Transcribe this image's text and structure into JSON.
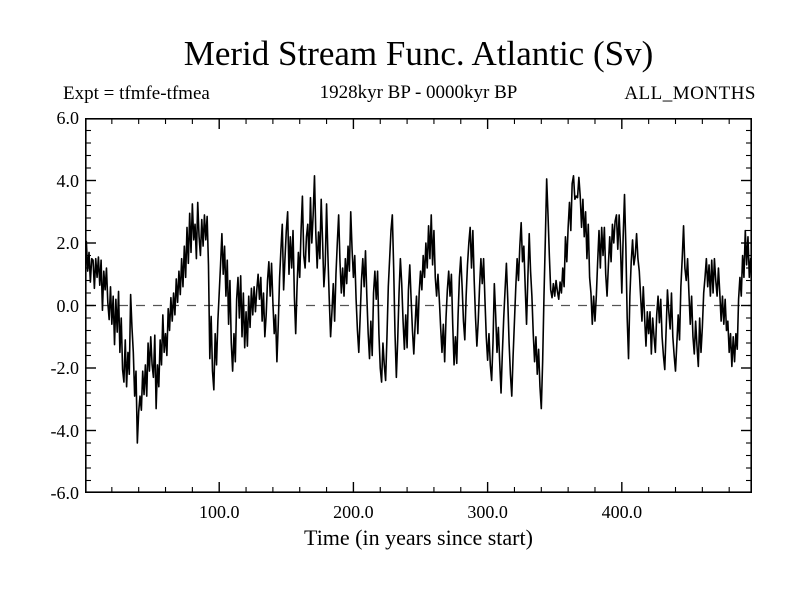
{
  "page": {
    "background": "#ffffff"
  },
  "header": {
    "title": "Merid Stream Func. Atlantic (Sv)",
    "expt_label": "Expt = tfmfe-tfmea",
    "range_label": "1928kyr BP - 0000kyr BP",
    "months_label": "ALL_MONTHS"
  },
  "chart_data": {
    "type": "line",
    "title": "Merid Stream Func. Atlantic (Sv)",
    "xlabel": "Time (in years since start)",
    "ylabel": "",
    "xlim": [
      0,
      497
    ],
    "ylim": [
      -6,
      6
    ],
    "grid": false,
    "legend": "none",
    "x_major_ticks": [
      100,
      200,
      300,
      400
    ],
    "x_tick_labels": [
      "100.0",
      "200.0",
      "300.0",
      "400.0"
    ],
    "x_minor_step": 20,
    "y_major_ticks": [
      6,
      4,
      2,
      0,
      -2,
      -4,
      -6
    ],
    "y_tick_labels": [
      "6.0",
      "4.0",
      "2.0",
      "0.0",
      "-2.0",
      "-4.0",
      "-6.0"
    ],
    "y_minor_step": 0.4,
    "zero_line": 0,
    "line_color": "#000000",
    "zero_line_color": "#555555",
    "frame_color": "#000000",
    "x_start": 0,
    "x_step": 1,
    "values": [
      1.3,
      2.05,
      1.1,
      1.7,
      0.75,
      1.5,
      1.45,
      0.55,
      1.5,
      0.9,
      1.55,
      0.65,
      1.45,
      -0.15,
      1.1,
      0.5,
      1.2,
      0.1,
      -0.45,
      0.6,
      -0.6,
      0.3,
      -1.25,
      0.2,
      -0.85,
      0.45,
      -1.5,
      -0.4,
      -2.05,
      -2.45,
      -1.1,
      -2.6,
      -1.5,
      -2.2,
      0.35,
      -0.7,
      -1.5,
      -2.9,
      -2.1,
      -4.4,
      -3.4,
      -2.9,
      -3.35,
      -2.1,
      -2.85,
      -1.9,
      -2.9,
      -1.2,
      -2.1,
      -1.0,
      -1.9,
      -2.3,
      -0.95,
      -3.3,
      -1.9,
      -2.6,
      -1.1,
      -1.9,
      -0.3,
      -1.5,
      -0.9,
      -1.6,
      -0.1,
      -0.8,
      0.25,
      -0.5,
      0.4,
      -0.3,
      0.85,
      0.1,
      1.1,
      0.35,
      1.5,
      0.6,
      1.9,
      0.9,
      2.5,
      1.35,
      2.95,
      1.7,
      3.25,
      2.1,
      2.6,
      1.5,
      3.3,
      2.2,
      1.6,
      2.75,
      1.9,
      2.9,
      2.1,
      2.85,
      1.3,
      -1.7,
      -0.35,
      -2.1,
      -2.7,
      -0.9,
      -1.9,
      -0.5,
      0.4,
      1.3,
      2.3,
      1.0,
      1.9,
      0.3,
      1.45,
      -0.6,
      0.8,
      -1.2,
      -2.1,
      -0.9,
      -1.8,
      0.2,
      0.9,
      -0.4,
      0.95,
      -1.0,
      0.4,
      -1.35,
      -0.2,
      -1.3,
      0.3,
      -0.7,
      0.55,
      -0.3,
      0.6,
      -0.2,
      0.5,
      1.0,
      0.2,
      0.9,
      -0.5,
      0.4,
      -1.0,
      -0.3,
      0.8,
      1.4,
      0.3,
      1.35,
      0.1,
      -0.9,
      -0.3,
      -1.8,
      -0.6,
      0.9,
      1.8,
      2.6,
      0.5,
      1.5,
      2.4,
      3.0,
      1.0,
      2.2,
      1.2,
      2.4,
      0.3,
      -0.9,
      0.6,
      1.7,
      0.9,
      2.4,
      3.5,
      1.6,
      1.2,
      2.2,
      2.6,
      1.4,
      3.45,
      2.0,
      2.9,
      4.15,
      2.3,
      1.2,
      2.35,
      1.5,
      3.4,
      2.1,
      0.6,
      1.3,
      3.25,
      1.6,
      0.2,
      -1.0,
      -0.2,
      0.7,
      -0.5,
      1.0,
      2.0,
      2.9,
      1.4,
      0.4,
      1.2,
      0.3,
      1.5,
      0.7,
      1.9,
      1.1,
      3.0,
      1.8,
      0.9,
      1.6,
      0.2,
      -0.8,
      -1.5,
      -0.4,
      0.8,
      1.5,
      0.6,
      1.75,
      0.3,
      -0.9,
      -1.7,
      -0.5,
      -1.6,
      0.4,
      1.1,
      0.2,
      1.1,
      -0.9,
      -2.0,
      -2.45,
      -1.2,
      -1.9,
      -2.4,
      -1.0,
      0.6,
      1.5,
      2.4,
      2.9,
      1.2,
      -0.9,
      -2.3,
      -1.1,
      0.4,
      1.5,
      0.7,
      -0.5,
      -1.4,
      -0.3,
      -1.35,
      0.5,
      1.3,
      0.2,
      -0.8,
      -1.55,
      -0.6,
      0.3,
      -0.9,
      0.4,
      1.1,
      0.5,
      1.6,
      0.9,
      2.0,
      1.2,
      2.55,
      1.5,
      2.9,
      1.3,
      2.4,
      0.9,
      0.3,
      1.0,
      0.2,
      -0.7,
      -1.5,
      -0.6,
      -1.8,
      -0.4,
      0.5,
      1.1,
      0.3,
      1.0,
      -0.6,
      -1.9,
      -1.0,
      -1.85,
      -0.3,
      0.9,
      1.55,
      0.6,
      -0.5,
      -1.1,
      0.3,
      1.3,
      2.0,
      2.5,
      1.2,
      2.4,
      0.8,
      -0.4,
      -1.3,
      -0.5,
      0.6,
      1.5,
      0.7,
      1.5,
      0.2,
      -1.0,
      -1.75,
      -0.9,
      -1.9,
      -2.4,
      -1.2,
      0.7,
      -0.3,
      -1.5,
      -0.7,
      -1.8,
      -2.8,
      -1.5,
      -0.4,
      0.5,
      1.35,
      0.2,
      -1.2,
      -2.2,
      -2.9,
      -1.6,
      -0.5,
      0.6,
      1.5,
      0.8,
      1.9,
      2.65,
      1.4,
      1.9,
      0.6,
      -0.6,
      0.9,
      2.3,
      1.1,
      0.3,
      -0.9,
      -1.8,
      -1.0,
      -2.2,
      -1.4,
      -2.6,
      -3.3,
      -1.8,
      0.3,
      2.1,
      4.05,
      2.9,
      1.6,
      0.5,
      0.25,
      0.7,
      0.3,
      0.8,
      0.45,
      0.2,
      0.75,
      0.4,
      1.2,
      0.6,
      2.2,
      1.4,
      2.5,
      3.3,
      2.4,
      3.9,
      4.15,
      3.4,
      3.5,
      3.45,
      4.1,
      3.5,
      2.5,
      3.4,
      2.2,
      3.0,
      1.5,
      2.6,
      0.9,
      0.4,
      -0.6,
      0.3,
      -0.5,
      0.3,
      1.4,
      2.4,
      1.2,
      2.5,
      1.6,
      2.5,
      1.0,
      0.3,
      1.3,
      2.2,
      1.4,
      2.6,
      2.0,
      2.7,
      2.9,
      1.8,
      2.9,
      1.9,
      0.4,
      2.2,
      3.55,
      1.9,
      -0.4,
      -1.7,
      0.3,
      1.4,
      2.1,
      1.3,
      1.6,
      2.3,
      1.5,
      1.1,
      0.3,
      -0.5,
      0.6,
      -0.4,
      -1.3,
      -0.2,
      -0.9,
      -0.2,
      -1.55,
      -0.4,
      -1.0,
      -1.5,
      -0.3,
      0.3,
      -0.55,
      0.2,
      -1.0,
      -1.6,
      -2.05,
      -0.8,
      0.5,
      -0.2,
      -0.75,
      0.4,
      -1.0,
      -1.6,
      -2.1,
      -1.2,
      -0.3,
      -1.1,
      0.6,
      1.5,
      2.55,
      1.2,
      0.8,
      1.5,
      0.4,
      -0.6,
      0.3,
      -1.0,
      -1.55,
      -0.5,
      -1.3,
      -1.95,
      -0.4,
      -1.5,
      -0.7,
      0.4,
      0.9,
      1.5,
      0.6,
      1.3,
      0.3,
      1.45,
      0.4,
      1.5,
      0.8,
      0.3,
      1.2,
      0.4,
      -0.5,
      0.3,
      -0.6,
      0.2,
      -0.8,
      -0.5,
      -1.5,
      -0.9,
      -1.95,
      -1.0,
      -1.8,
      -0.9,
      -1.4,
      0.2,
      0.9,
      0.3,
      1.6,
      0.9,
      2.4,
      1.3,
      2.2,
      0.9,
      1.5
    ]
  }
}
